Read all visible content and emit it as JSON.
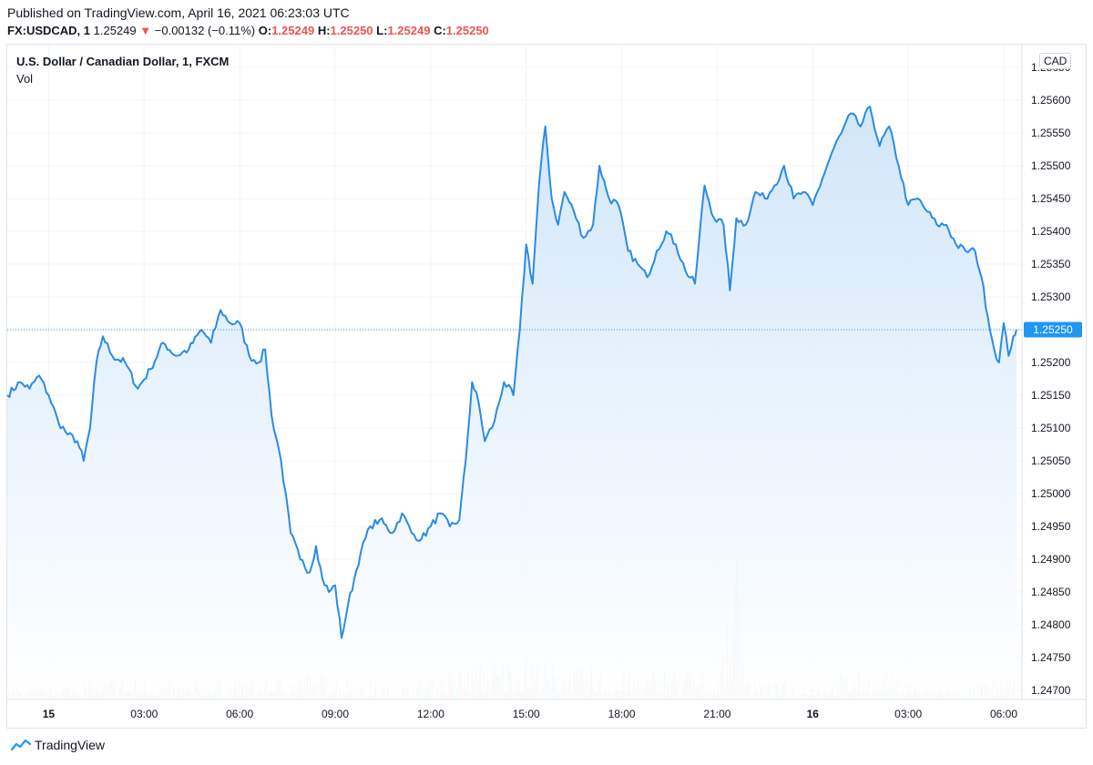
{
  "header": {
    "published": "Published on TradingView.com, April 16, 2021 06:23:03 UTC",
    "symbol": "FX:USDCAD, 1",
    "last": "1.25249",
    "arrow": "▼",
    "change": "−0.00132 (−0.11%)",
    "o_label": "O:",
    "o_value": "1.25249",
    "h_label": "H:",
    "h_value": "1.25250",
    "l_label": "L:",
    "l_value": "1.25249",
    "c_label": "C:",
    "c_value": "1.25250"
  },
  "legend": {
    "title": "U.S. Dollar / Canadian Dollar, 1, FXCM",
    "volume": "Vol"
  },
  "currency_badge": "CAD",
  "footer": {
    "brand": "TradingView"
  },
  "colors": {
    "line": "#2a8be4",
    "fill_top": "#cfe5f9",
    "fill_bottom": "#ffffff",
    "last_price_bg": "#2196f3",
    "vol_up": "#26a69a",
    "vol_down": "#ef5350"
  },
  "chart_data": {
    "type": "area",
    "title": "U.S. Dollar / Canadian Dollar, 1, FXCM",
    "xlabel": "",
    "ylabel": "CAD",
    "ylim": [
      1.2468,
      1.2566
    ],
    "y_ticks": [
      "1.25650",
      "1.25600",
      "1.25550",
      "1.25500",
      "1.25450",
      "1.25400",
      "1.25350",
      "1.25300",
      "1.25250",
      "1.25200",
      "1.25150",
      "1.25100",
      "1.25050",
      "1.25000",
      "1.24950",
      "1.24900",
      "1.24850",
      "1.24800",
      "1.24750",
      "1.24700"
    ],
    "x_ticks": [
      {
        "label": "15",
        "bold": true,
        "h": 0
      },
      {
        "label": "03:00",
        "bold": false,
        "h": 3
      },
      {
        "label": "06:00",
        "bold": false,
        "h": 6
      },
      {
        "label": "09:00",
        "bold": false,
        "h": 9
      },
      {
        "label": "12:00",
        "bold": false,
        "h": 12
      },
      {
        "label": "15:00",
        "bold": false,
        "h": 15
      },
      {
        "label": "18:00",
        "bold": false,
        "h": 18
      },
      {
        "label": "21:00",
        "bold": false,
        "h": 21
      },
      {
        "label": "16",
        "bold": true,
        "h": 24
      },
      {
        "label": "03:00",
        "bold": false,
        "h": 27
      },
      {
        "label": "06:00",
        "bold": false,
        "h": 30
      }
    ],
    "x_start_hours": -1.3,
    "x_end_hours": 30.4,
    "last_price": "1.25250",
    "series": [
      {
        "name": "USDCAD close",
        "points": [
          [
            -1.3,
            1.2515
          ],
          [
            -0.9,
            1.2517
          ],
          [
            -0.6,
            1.2516
          ],
          [
            -0.3,
            1.2518
          ],
          [
            0.0,
            1.2515
          ],
          [
            0.3,
            1.2511
          ],
          [
            0.6,
            1.2509
          ],
          [
            0.9,
            1.2508
          ],
          [
            1.1,
            1.2505
          ],
          [
            1.3,
            1.251
          ],
          [
            1.5,
            1.252
          ],
          [
            1.7,
            1.2524
          ],
          [
            2.0,
            1.2521
          ],
          [
            2.4,
            1.252
          ],
          [
            2.8,
            1.2516
          ],
          [
            3.2,
            1.2519
          ],
          [
            3.6,
            1.2523
          ],
          [
            4.0,
            1.2521
          ],
          [
            4.4,
            1.2522
          ],
          [
            4.8,
            1.2525
          ],
          [
            5.1,
            1.2523
          ],
          [
            5.4,
            1.2528
          ],
          [
            5.7,
            1.2526
          ],
          [
            6.0,
            1.2526
          ],
          [
            6.3,
            1.2521
          ],
          [
            6.6,
            1.252
          ],
          [
            6.8,
            1.2522
          ],
          [
            7.0,
            1.2512
          ],
          [
            7.3,
            1.2505
          ],
          [
            7.6,
            1.2494
          ],
          [
            7.9,
            1.249
          ],
          [
            8.2,
            1.2488
          ],
          [
            8.4,
            1.2492
          ],
          [
            8.6,
            1.2487
          ],
          [
            8.8,
            1.2485
          ],
          [
            9.0,
            1.2486
          ],
          [
            9.2,
            1.2478
          ],
          [
            9.4,
            1.2483
          ],
          [
            9.6,
            1.2487
          ],
          [
            9.8,
            1.2491
          ],
          [
            10.1,
            1.2495
          ],
          [
            10.4,
            1.2496
          ],
          [
            10.8,
            1.2494
          ],
          [
            11.1,
            1.2497
          ],
          [
            11.4,
            1.2494
          ],
          [
            11.7,
            1.2493
          ],
          [
            12.0,
            1.2495
          ],
          [
            12.3,
            1.2497
          ],
          [
            12.6,
            1.2495
          ],
          [
            12.9,
            1.2496
          ],
          [
            13.1,
            1.2505
          ],
          [
            13.3,
            1.2517
          ],
          [
            13.5,
            1.2514
          ],
          [
            13.7,
            1.2508
          ],
          [
            14.0,
            1.2511
          ],
          [
            14.3,
            1.2517
          ],
          [
            14.6,
            1.2515
          ],
          [
            14.8,
            1.2525
          ],
          [
            15.0,
            1.2538
          ],
          [
            15.2,
            1.2532
          ],
          [
            15.4,
            1.2547
          ],
          [
            15.6,
            1.2556
          ],
          [
            15.8,
            1.2545
          ],
          [
            16.0,
            1.2541
          ],
          [
            16.2,
            1.2546
          ],
          [
            16.5,
            1.2543
          ],
          [
            16.8,
            1.2539
          ],
          [
            17.1,
            1.2541
          ],
          [
            17.3,
            1.255
          ],
          [
            17.6,
            1.2545
          ],
          [
            17.9,
            1.2544
          ],
          [
            18.2,
            1.2537
          ],
          [
            18.5,
            1.2535
          ],
          [
            18.8,
            1.2533
          ],
          [
            19.1,
            1.2537
          ],
          [
            19.4,
            1.254
          ],
          [
            19.7,
            1.2538
          ],
          [
            20.0,
            1.2534
          ],
          [
            20.3,
            1.2532
          ],
          [
            20.6,
            1.2547
          ],
          [
            20.9,
            1.2542
          ],
          [
            21.2,
            1.2541
          ],
          [
            21.4,
            1.2531
          ],
          [
            21.6,
            1.2542
          ],
          [
            21.9,
            1.2541
          ],
          [
            22.2,
            1.2546
          ],
          [
            22.5,
            1.2545
          ],
          [
            22.8,
            1.2547
          ],
          [
            23.1,
            1.255
          ],
          [
            23.4,
            1.2545
          ],
          [
            23.7,
            1.2546
          ],
          [
            24.0,
            1.2544
          ],
          [
            24.3,
            1.2548
          ],
          [
            24.6,
            1.2552
          ],
          [
            24.9,
            1.2555
          ],
          [
            25.2,
            1.2558
          ],
          [
            25.5,
            1.2556
          ],
          [
            25.8,
            1.2559
          ],
          [
            26.1,
            1.2553
          ],
          [
            26.4,
            1.2556
          ],
          [
            26.7,
            1.255
          ],
          [
            27.0,
            1.2544
          ],
          [
            27.3,
            1.2545
          ],
          [
            27.6,
            1.2543
          ],
          [
            27.9,
            1.2541
          ],
          [
            28.2,
            1.2541
          ],
          [
            28.5,
            1.2538
          ],
          [
            28.8,
            1.2537
          ],
          [
            29.1,
            1.2537
          ],
          [
            29.3,
            1.2533
          ],
          [
            29.5,
            1.2527
          ],
          [
            29.7,
            1.2522
          ],
          [
            29.85,
            1.252
          ],
          [
            30.0,
            1.2526
          ],
          [
            30.15,
            1.2521
          ],
          [
            30.3,
            1.2524
          ],
          [
            30.4,
            1.2525
          ]
        ]
      }
    ],
    "volume_profile": [
      [
        -1.3,
        0.3
      ],
      [
        0,
        0.4
      ],
      [
        1,
        0.5
      ],
      [
        2,
        0.7
      ],
      [
        3,
        0.6
      ],
      [
        4,
        0.5
      ],
      [
        5,
        0.5
      ],
      [
        6,
        0.6
      ],
      [
        7,
        0.6
      ],
      [
        8,
        0.8
      ],
      [
        9,
        0.7
      ],
      [
        10,
        0.5
      ],
      [
        11,
        0.4
      ],
      [
        12,
        0.6
      ],
      [
        13,
        1.0
      ],
      [
        14,
        1.2
      ],
      [
        15,
        1.3
      ],
      [
        16,
        1.0
      ],
      [
        17,
        0.9
      ],
      [
        18,
        0.7
      ],
      [
        19,
        0.9
      ],
      [
        20,
        1.0
      ],
      [
        21,
        0.6
      ],
      [
        21.6,
        3.8
      ],
      [
        22,
        0.5
      ],
      [
        23,
        0.5
      ],
      [
        24,
        0.6
      ],
      [
        25,
        0.8
      ],
      [
        26,
        0.8
      ],
      [
        27,
        0.6
      ],
      [
        28,
        0.4
      ],
      [
        29,
        0.4
      ],
      [
        30,
        0.6
      ]
    ]
  }
}
